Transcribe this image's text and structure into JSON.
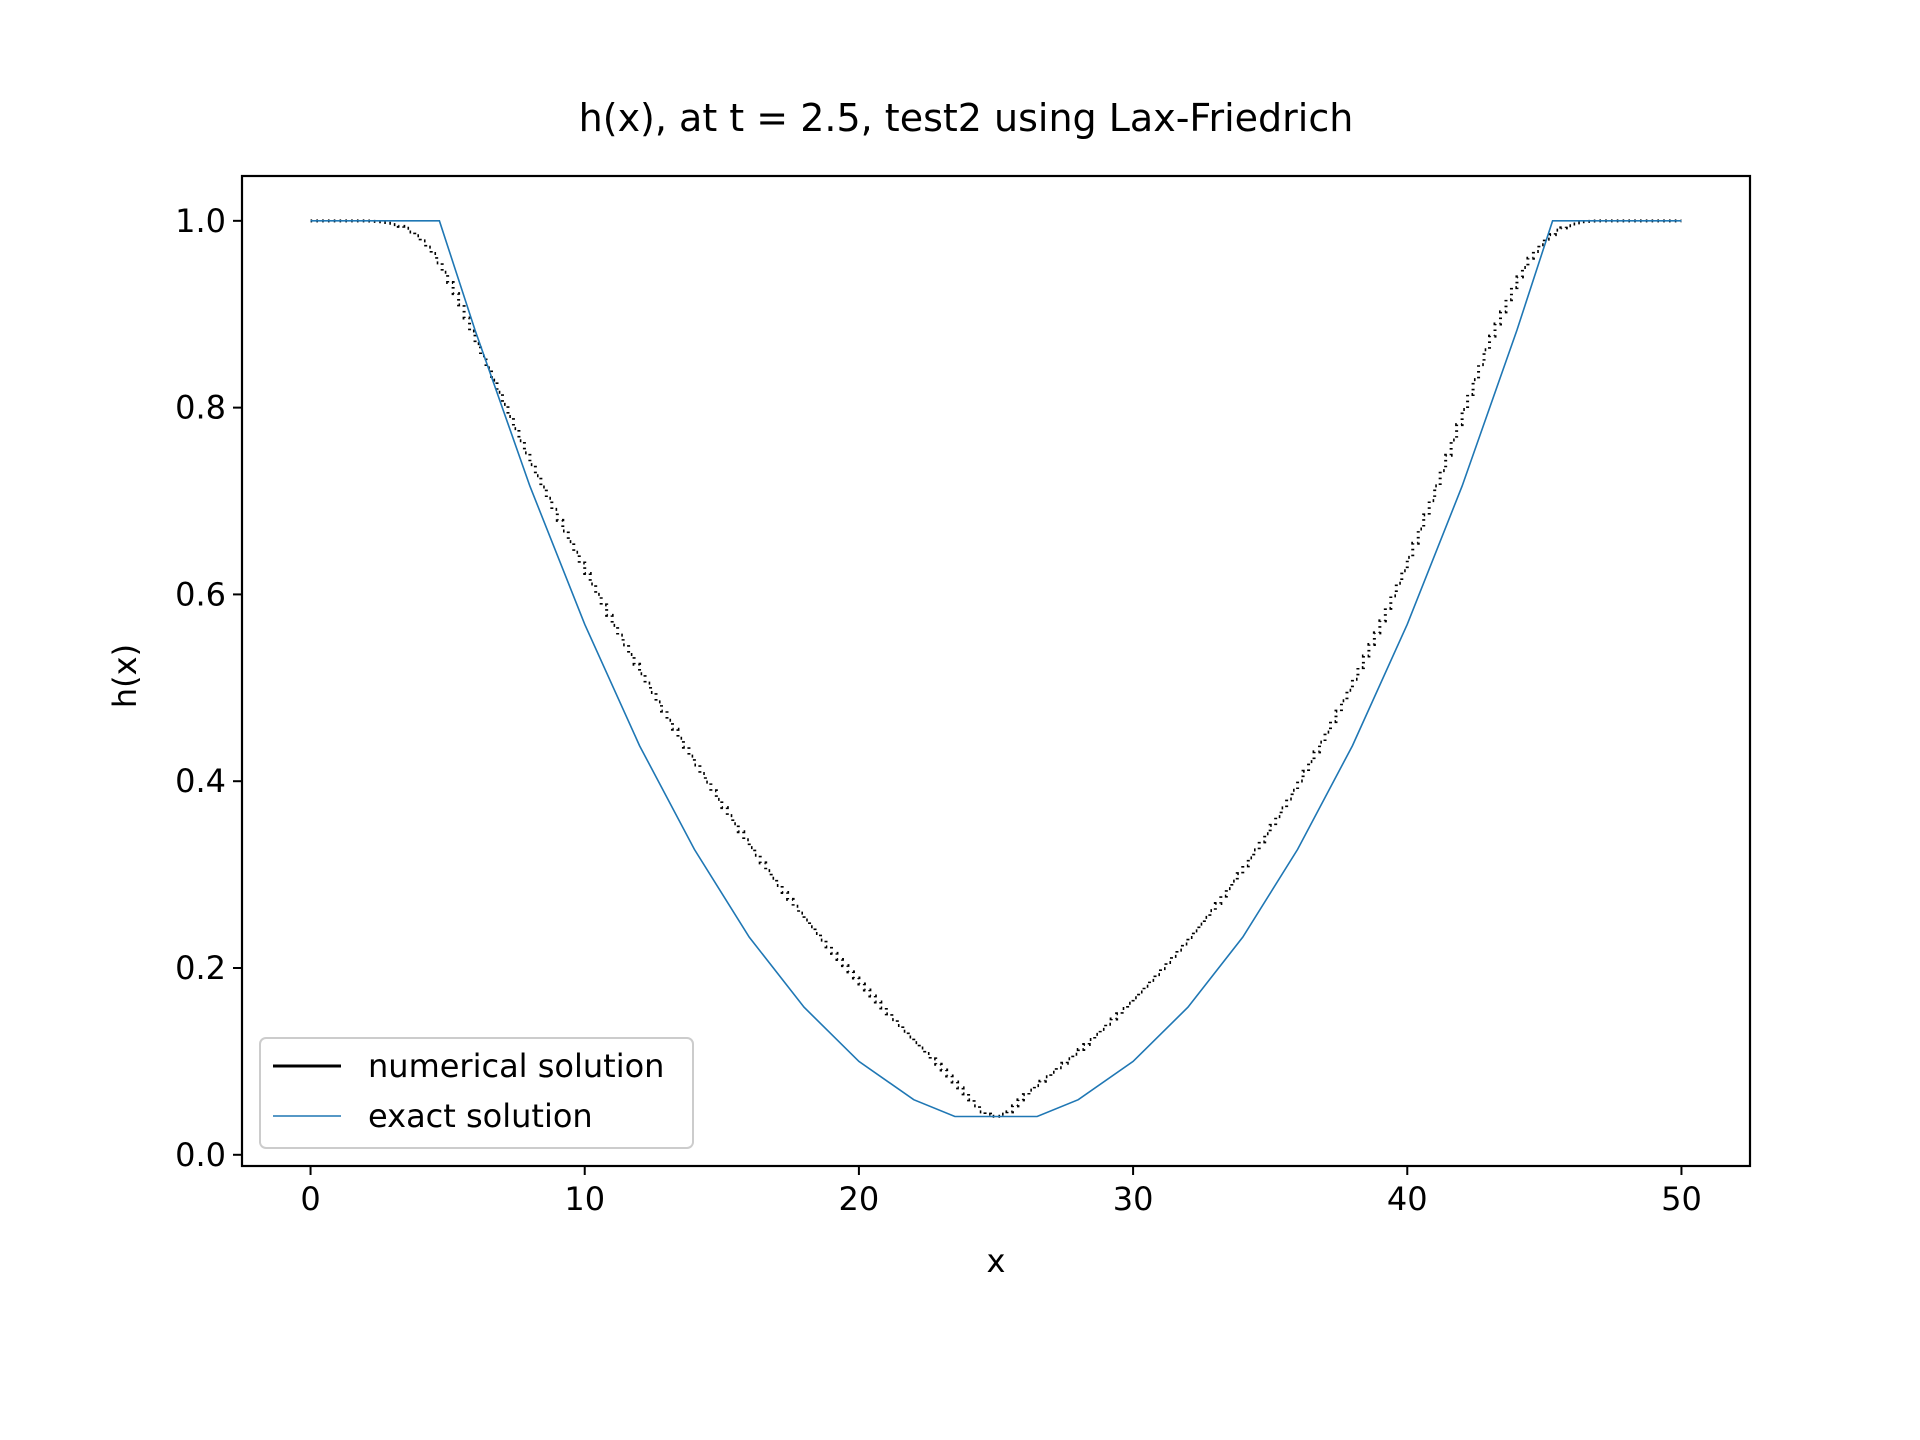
{
  "chart_data": {
    "type": "line",
    "title": "h(x), at t = 2.5, test2 using Lax-Friedrich",
    "xlabel": "x",
    "ylabel": "h(x)",
    "xlim": [
      -2.5,
      52.5
    ],
    "ylim": [
      -0.012,
      1.048
    ],
    "xticks": [
      0,
      10,
      20,
      30,
      40,
      50
    ],
    "xtick_labels": [
      "0",
      "10",
      "20",
      "30",
      "40",
      "50"
    ],
    "yticks": [
      0.0,
      0.2,
      0.4,
      0.6,
      0.8,
      1.0
    ],
    "ytick_labels": [
      "0.0",
      "0.2",
      "0.4",
      "0.6",
      "0.8",
      "1.0"
    ],
    "grid": false,
    "legend_position": "lower-left",
    "series": [
      {
        "name": "numerical solution",
        "color": "#000000",
        "style": "dotted-steps",
        "x": [
          0,
          2,
          2.5,
          3,
          3.5,
          4,
          4.5,
          5,
          5.5,
          6,
          7,
          8,
          9,
          10,
          11,
          12,
          13,
          14,
          15,
          16,
          17,
          18,
          19,
          20,
          21,
          22,
          23,
          24,
          24.5,
          25,
          25.5,
          26,
          27,
          28,
          29,
          30,
          31,
          32,
          33,
          34,
          35,
          36,
          37,
          38,
          39,
          40,
          41,
          42,
          43,
          44,
          44.5,
          45,
          45.5,
          46,
          46.5,
          47,
          48,
          50
        ],
        "y": [
          1.0,
          1.0,
          0.999,
          0.997,
          0.992,
          0.982,
          0.965,
          0.94,
          0.91,
          0.875,
          0.81,
          0.745,
          0.685,
          0.628,
          0.572,
          0.52,
          0.47,
          0.422,
          0.376,
          0.333,
          0.292,
          0.255,
          0.219,
          0.186,
          0.154,
          0.123,
          0.094,
          0.062,
          0.046,
          0.04,
          0.046,
          0.062,
          0.086,
          0.11,
          0.137,
          0.165,
          0.196,
          0.229,
          0.265,
          0.305,
          0.348,
          0.395,
          0.447,
          0.503,
          0.565,
          0.632,
          0.708,
          0.79,
          0.87,
          0.935,
          0.96,
          0.978,
          0.99,
          0.996,
          0.999,
          1.0,
          1.0,
          1.0
        ]
      },
      {
        "name": "exact solution",
        "color": "#1f77b4",
        "style": "solid",
        "x": [
          0,
          4.7,
          6,
          8,
          10,
          12,
          14,
          16,
          18,
          20,
          22,
          23.5,
          26.5,
          28,
          30,
          32,
          34,
          36,
          38,
          40,
          42,
          44,
          45.3,
          50
        ],
        "y": [
          1.0,
          1.0,
          0.883,
          0.716,
          0.568,
          0.438,
          0.327,
          0.233,
          0.158,
          0.1,
          0.059,
          0.041,
          0.041,
          0.059,
          0.1,
          0.158,
          0.233,
          0.327,
          0.438,
          0.568,
          0.716,
          0.883,
          1.0,
          1.0
        ]
      }
    ]
  }
}
